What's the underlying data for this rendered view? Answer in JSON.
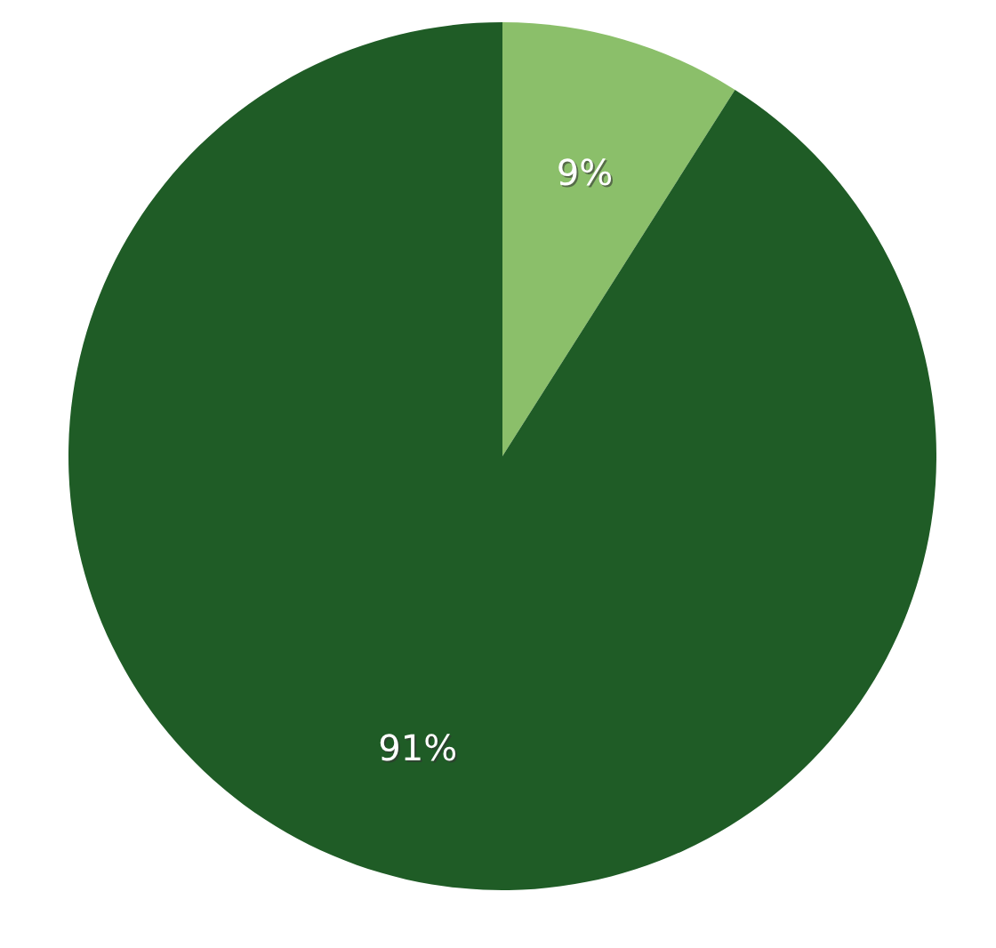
{
  "chart_data": {
    "type": "pie",
    "categories": [
      null,
      null
    ],
    "values": [
      9,
      91
    ],
    "colors": [
      "#8bbf6a",
      "#1f5c26"
    ],
    "value_labels": [
      "9%",
      "91%"
    ]
  }
}
